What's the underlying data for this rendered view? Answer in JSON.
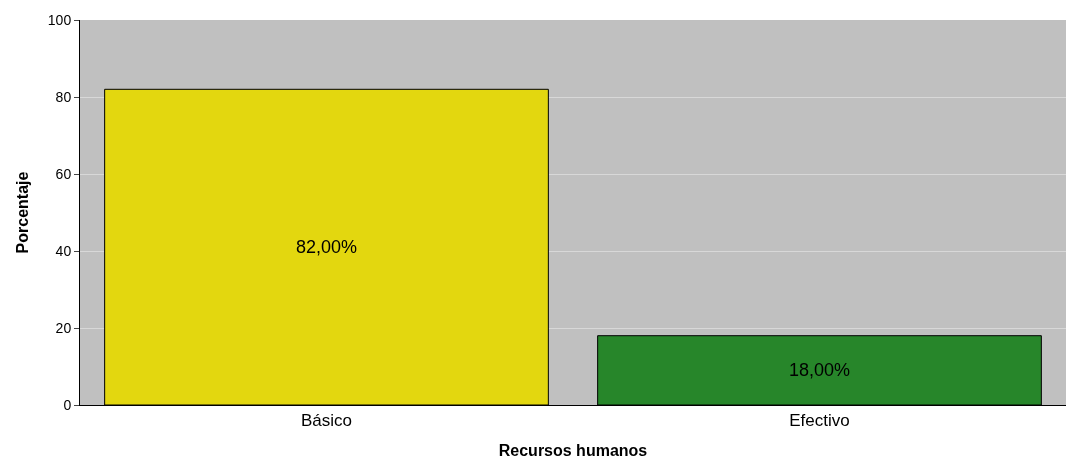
{
  "chart_data": {
    "type": "bar",
    "xlabel": "Recursos humanos",
    "ylabel": "Porcentaje",
    "categories": [
      "Básico",
      "Efectivo"
    ],
    "values": [
      82,
      18
    ],
    "colors": [
      "#e3d70f",
      "#27862a"
    ],
    "value_labels": [
      "82,00%",
      "18,00%"
    ],
    "ylim": [
      0,
      100
    ],
    "yticks": [
      0,
      20,
      40,
      60,
      80,
      100
    ],
    "grid": "y"
  }
}
